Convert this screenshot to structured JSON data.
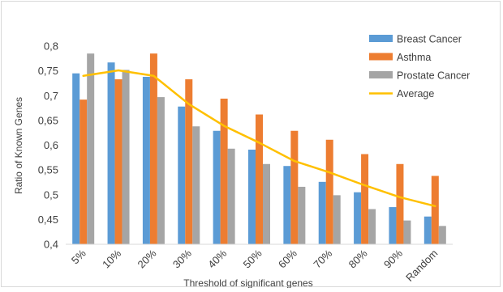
{
  "chart_data": {
    "type": "bar",
    "title": "",
    "xlabel": "Threshold of significant genes",
    "ylabel": "Ratio of Known Genes",
    "ylim": [
      0.4,
      0.8
    ],
    "yticks": [
      "0,4",
      "0,45",
      "0,5",
      "0,55",
      "0,6",
      "0,65",
      "0,7",
      "0,75",
      "0,8"
    ],
    "categories": [
      "5%",
      "10%",
      "20%",
      "30%",
      "40%",
      "50%",
      "60%",
      "70%",
      "80%",
      "90%",
      "Random"
    ],
    "grid": false,
    "legend_position": "top-right",
    "series": [
      {
        "name": "Breast Cancer",
        "kind": "bar",
        "color": "#5b9bd5",
        "values": [
          0.745,
          0.767,
          0.738,
          0.678,
          0.629,
          0.591,
          0.558,
          0.526,
          0.505,
          0.475,
          0.456
        ]
      },
      {
        "name": "Asthma",
        "kind": "bar",
        "color": "#ed7d31",
        "values": [
          0.692,
          0.733,
          0.785,
          0.733,
          0.694,
          0.662,
          0.629,
          0.611,
          0.582,
          0.562,
          0.538
        ]
      },
      {
        "name": "Prostate Cancer",
        "kind": "bar",
        "color": "#a5a5a5",
        "values": [
          0.785,
          0.752,
          0.697,
          0.638,
          0.593,
          0.562,
          0.516,
          0.499,
          0.471,
          0.448,
          0.437
        ]
      },
      {
        "name": "Average",
        "kind": "line",
        "color": "#ffc000",
        "values": [
          0.74,
          0.751,
          0.74,
          0.683,
          0.639,
          0.605,
          0.568,
          0.545,
          0.519,
          0.495,
          0.477
        ]
      }
    ]
  }
}
